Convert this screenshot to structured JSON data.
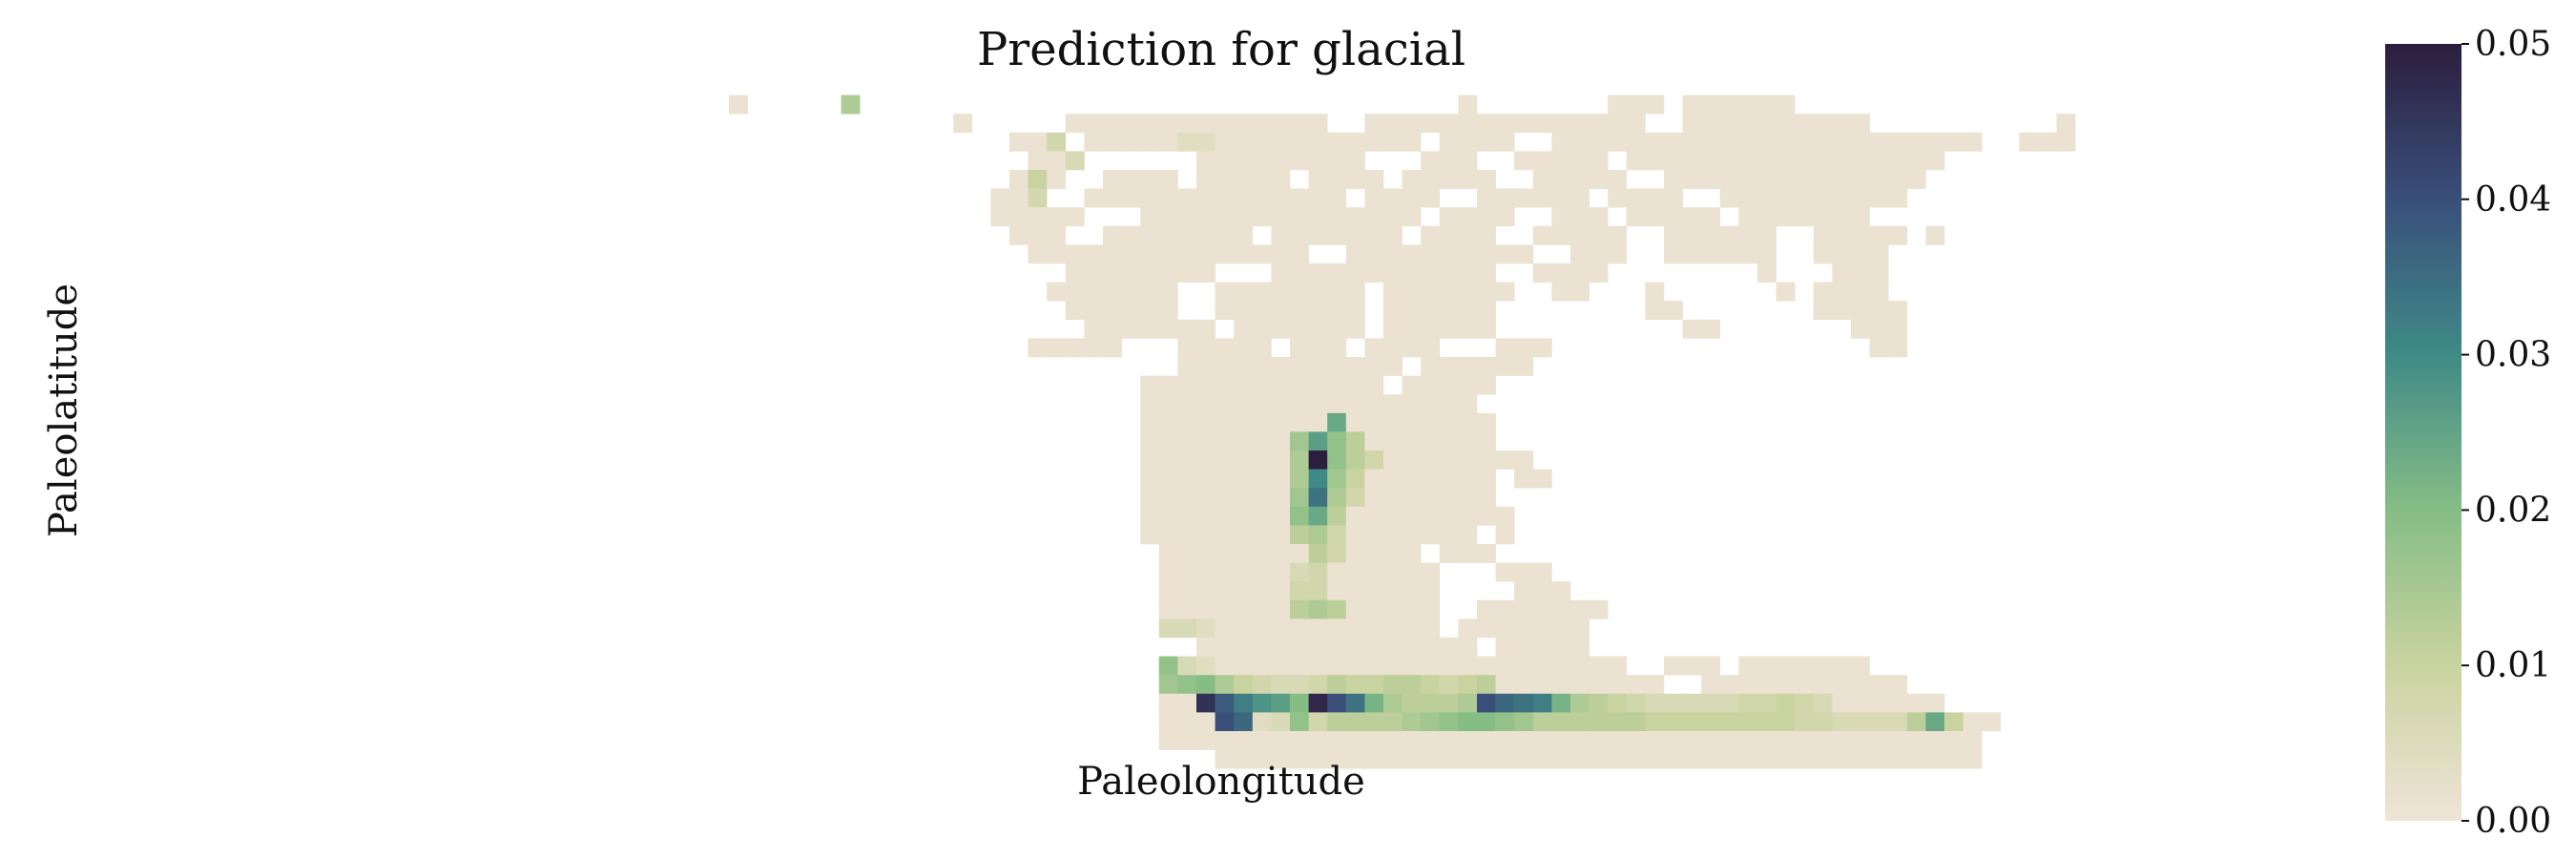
{
  "chart_data": {
    "type": "heatmap",
    "title": "Prediction for glacial",
    "xlabel": "Paleolongitude",
    "ylabel": "Paleolatitude",
    "x_ticks_visible": false,
    "y_ticks_visible": false,
    "colorbar": {
      "min": 0.0,
      "max": 0.05,
      "ticks": [
        "0.00",
        "0.01",
        "0.02",
        "0.03",
        "0.04",
        "0.05"
      ],
      "tick_values": [
        0.0,
        0.01,
        0.02,
        0.03,
        0.04,
        0.05
      ],
      "colormap": "cubehelix-like (cream → green → teal → navy)",
      "stops": [
        "#efe4d7",
        "#c9d3a0",
        "#86bd85",
        "#3f8a86",
        "#394f7a",
        "#2c1e3d"
      ]
    },
    "grid": {
      "n_cols": 96,
      "n_rows": 36,
      "background_value": 0.001,
      "land_runs": [
        [
          1,
          15,
          15
        ],
        [
          1,
          21,
          21
        ],
        [
          1,
          54,
          54
        ],
        [
          1,
          62,
          64
        ],
        [
          1,
          66,
          71
        ],
        [
          2,
          27,
          27
        ],
        [
          2,
          33,
          46
        ],
        [
          2,
          49,
          63
        ],
        [
          2,
          66,
          75
        ],
        [
          2,
          86,
          86
        ],
        [
          3,
          30,
          32
        ],
        [
          3,
          34,
          51
        ],
        [
          3,
          53,
          56
        ],
        [
          3,
          59,
          81
        ],
        [
          3,
          84,
          86
        ],
        [
          4,
          31,
          33
        ],
        [
          4,
          40,
          48
        ],
        [
          4,
          52,
          54
        ],
        [
          4,
          57,
          61
        ],
        [
          4,
          63,
          79
        ],
        [
          5,
          30,
          32
        ],
        [
          5,
          35,
          38
        ],
        [
          5,
          40,
          44
        ],
        [
          5,
          46,
          49
        ],
        [
          5,
          51,
          55
        ],
        [
          5,
          58,
          62
        ],
        [
          5,
          65,
          78
        ],
        [
          6,
          29,
          31
        ],
        [
          6,
          34,
          47
        ],
        [
          6,
          49,
          52
        ],
        [
          6,
          55,
          60
        ],
        [
          6,
          62,
          65
        ],
        [
          6,
          68,
          77
        ],
        [
          7,
          29,
          33
        ],
        [
          7,
          37,
          51
        ],
        [
          7,
          53,
          56
        ],
        [
          7,
          59,
          61
        ],
        [
          7,
          63,
          67
        ],
        [
          7,
          69,
          75
        ],
        [
          8,
          30,
          32
        ],
        [
          8,
          35,
          42
        ],
        [
          8,
          44,
          50
        ],
        [
          8,
          52,
          55
        ],
        [
          8,
          58,
          62
        ],
        [
          8,
          65,
          70
        ],
        [
          8,
          73,
          77
        ],
        [
          8,
          79,
          79
        ],
        [
          9,
          31,
          45
        ],
        [
          9,
          48,
          57
        ],
        [
          9,
          60,
          62
        ],
        [
          9,
          65,
          70
        ],
        [
          9,
          73,
          76
        ],
        [
          10,
          33,
          40
        ],
        [
          10,
          44,
          55
        ],
        [
          10,
          58,
          61
        ],
        [
          10,
          70,
          70
        ],
        [
          10,
          74,
          76
        ],
        [
          11,
          32,
          38
        ],
        [
          11,
          41,
          48
        ],
        [
          11,
          50,
          56
        ],
        [
          11,
          59,
          60
        ],
        [
          11,
          64,
          64
        ],
        [
          11,
          71,
          71
        ],
        [
          11,
          73,
          76
        ],
        [
          12,
          33,
          38
        ],
        [
          12,
          41,
          48
        ],
        [
          12,
          50,
          55
        ],
        [
          12,
          64,
          65
        ],
        [
          12,
          73,
          77
        ],
        [
          13,
          34,
          40
        ],
        [
          13,
          42,
          48
        ],
        [
          13,
          50,
          55
        ],
        [
          13,
          66,
          67
        ],
        [
          13,
          75,
          77
        ],
        [
          14,
          31,
          35
        ],
        [
          14,
          39,
          43
        ],
        [
          14,
          45,
          47
        ],
        [
          14,
          49,
          52
        ],
        [
          14,
          56,
          58
        ],
        [
          14,
          76,
          77
        ],
        [
          15,
          39,
          50
        ],
        [
          15,
          52,
          57
        ],
        [
          16,
          37,
          49
        ],
        [
          16,
          51,
          55
        ],
        [
          17,
          37,
          54
        ],
        [
          18,
          37,
          55
        ],
        [
          19,
          37,
          55
        ],
        [
          19,
          59,
          58
        ],
        [
          20,
          37,
          57
        ],
        [
          20,
          57,
          57
        ],
        [
          21,
          37,
          55
        ],
        [
          21,
          57,
          58
        ],
        [
          22,
          37,
          55
        ],
        [
          23,
          37,
          56
        ],
        [
          24,
          37,
          54
        ],
        [
          24,
          56,
          56
        ],
        [
          25,
          38,
          51
        ],
        [
          25,
          53,
          55
        ],
        [
          26,
          38,
          52
        ],
        [
          26,
          56,
          58
        ],
        [
          27,
          38,
          52
        ],
        [
          27,
          57,
          59
        ],
        [
          28,
          38,
          52
        ],
        [
          28,
          55,
          61
        ],
        [
          29,
          39,
          52
        ],
        [
          29,
          54,
          60
        ],
        [
          30,
          40,
          54
        ],
        [
          30,
          56,
          60
        ],
        [
          31,
          38,
          62
        ],
        [
          31,
          65,
          67
        ],
        [
          31,
          69,
          75
        ],
        [
          32,
          38,
          64
        ],
        [
          32,
          67,
          77
        ],
        [
          33,
          38,
          79
        ],
        [
          34,
          38,
          82
        ],
        [
          35,
          38,
          81
        ],
        [
          36,
          41,
          81
        ]
      ],
      "hot_cells": [
        [
          1,
          21,
          0.014
        ],
        [
          3,
          32,
          0.008
        ],
        [
          4,
          33,
          0.006
        ],
        [
          5,
          31,
          0.01
        ],
        [
          6,
          31,
          0.007
        ],
        [
          3,
          39,
          0.004
        ],
        [
          3,
          40,
          0.004
        ],
        [
          18,
          47,
          0.024
        ],
        [
          19,
          45,
          0.016
        ],
        [
          19,
          46,
          0.026
        ],
        [
          19,
          47,
          0.018
        ],
        [
          19,
          48,
          0.012
        ],
        [
          20,
          45,
          0.014
        ],
        [
          20,
          46,
          0.05
        ],
        [
          20,
          47,
          0.018
        ],
        [
          20,
          48,
          0.012
        ],
        [
          20,
          49,
          0.008
        ],
        [
          21,
          45,
          0.014
        ],
        [
          21,
          46,
          0.03
        ],
        [
          21,
          47,
          0.016
        ],
        [
          21,
          48,
          0.01
        ],
        [
          22,
          45,
          0.016
        ],
        [
          22,
          46,
          0.034
        ],
        [
          22,
          47,
          0.014
        ],
        [
          22,
          48,
          0.008
        ],
        [
          23,
          45,
          0.018
        ],
        [
          23,
          46,
          0.024
        ],
        [
          23,
          47,
          0.012
        ],
        [
          24,
          45,
          0.012
        ],
        [
          24,
          46,
          0.014
        ],
        [
          24,
          47,
          0.008
        ],
        [
          25,
          46,
          0.012
        ],
        [
          25,
          47,
          0.008
        ],
        [
          26,
          45,
          0.006
        ],
        [
          26,
          46,
          0.008
        ],
        [
          27,
          45,
          0.008
        ],
        [
          27,
          46,
          0.008
        ],
        [
          28,
          45,
          0.012
        ],
        [
          28,
          46,
          0.014
        ],
        [
          28,
          47,
          0.012
        ],
        [
          29,
          38,
          0.006
        ],
        [
          29,
          39,
          0.006
        ],
        [
          29,
          40,
          0.004
        ],
        [
          31,
          38,
          0.018
        ],
        [
          31,
          39,
          0.006
        ],
        [
          31,
          40,
          0.004
        ],
        [
          32,
          38,
          0.016
        ],
        [
          32,
          39,
          0.018
        ],
        [
          32,
          40,
          0.02
        ],
        [
          32,
          41,
          0.014
        ],
        [
          32,
          42,
          0.01
        ],
        [
          32,
          43,
          0.008
        ],
        [
          32,
          44,
          0.006
        ],
        [
          32,
          45,
          0.006
        ],
        [
          32,
          46,
          0.008
        ],
        [
          32,
          47,
          0.012
        ],
        [
          32,
          48,
          0.01
        ],
        [
          32,
          49,
          0.01
        ],
        [
          32,
          50,
          0.012
        ],
        [
          32,
          51,
          0.012
        ],
        [
          32,
          52,
          0.01
        ],
        [
          32,
          53,
          0.008
        ],
        [
          32,
          54,
          0.01
        ],
        [
          32,
          55,
          0.012
        ],
        [
          33,
          40,
          0.046
        ],
        [
          33,
          41,
          0.038
        ],
        [
          33,
          42,
          0.032
        ],
        [
          33,
          43,
          0.028
        ],
        [
          33,
          44,
          0.026
        ],
        [
          33,
          45,
          0.02
        ],
        [
          33,
          46,
          0.048
        ],
        [
          33,
          47,
          0.04
        ],
        [
          33,
          48,
          0.034
        ],
        [
          33,
          49,
          0.022
        ],
        [
          33,
          50,
          0.014
        ],
        [
          33,
          51,
          0.012
        ],
        [
          33,
          52,
          0.012
        ],
        [
          33,
          53,
          0.012
        ],
        [
          33,
          54,
          0.014
        ],
        [
          33,
          55,
          0.04
        ],
        [
          33,
          56,
          0.036
        ],
        [
          33,
          57,
          0.034
        ],
        [
          33,
          58,
          0.032
        ],
        [
          33,
          59,
          0.022
        ],
        [
          33,
          60,
          0.014
        ],
        [
          33,
          61,
          0.012
        ],
        [
          33,
          62,
          0.01
        ],
        [
          33,
          63,
          0.008
        ],
        [
          33,
          64,
          0.006
        ],
        [
          33,
          65,
          0.006
        ],
        [
          33,
          66,
          0.006
        ],
        [
          33,
          67,
          0.006
        ],
        [
          33,
          68,
          0.006
        ],
        [
          33,
          69,
          0.008
        ],
        [
          33,
          70,
          0.008
        ],
        [
          33,
          71,
          0.01
        ],
        [
          33,
          72,
          0.008
        ],
        [
          33,
          73,
          0.006
        ],
        [
          34,
          41,
          0.04
        ],
        [
          34,
          42,
          0.036
        ],
        [
          34,
          43,
          0.004
        ],
        [
          34,
          44,
          0.006
        ],
        [
          34,
          45,
          0.018
        ],
        [
          34,
          46,
          0.008
        ],
        [
          34,
          47,
          0.012
        ],
        [
          34,
          48,
          0.012
        ],
        [
          34,
          49,
          0.012
        ],
        [
          34,
          50,
          0.012
        ],
        [
          34,
          51,
          0.014
        ],
        [
          34,
          52,
          0.016
        ],
        [
          34,
          53,
          0.018
        ],
        [
          34,
          54,
          0.02
        ],
        [
          34,
          55,
          0.02
        ],
        [
          34,
          56,
          0.018
        ],
        [
          34,
          57,
          0.016
        ],
        [
          34,
          58,
          0.012
        ],
        [
          34,
          59,
          0.012
        ],
        [
          34,
          60,
          0.012
        ],
        [
          34,
          61,
          0.012
        ],
        [
          34,
          62,
          0.012
        ],
        [
          34,
          63,
          0.012
        ],
        [
          34,
          64,
          0.01
        ],
        [
          34,
          65,
          0.01
        ],
        [
          34,
          66,
          0.01
        ],
        [
          34,
          67,
          0.01
        ],
        [
          34,
          68,
          0.01
        ],
        [
          34,
          69,
          0.01
        ],
        [
          34,
          70,
          0.01
        ],
        [
          34,
          71,
          0.01
        ],
        [
          34,
          72,
          0.008
        ],
        [
          34,
          73,
          0.008
        ],
        [
          34,
          74,
          0.006
        ],
        [
          34,
          75,
          0.006
        ],
        [
          34,
          76,
          0.006
        ],
        [
          34,
          77,
          0.006
        ],
        [
          34,
          78,
          0.012
        ],
        [
          34,
          79,
          0.024
        ],
        [
          34,
          80,
          0.01
        ]
      ]
    }
  }
}
